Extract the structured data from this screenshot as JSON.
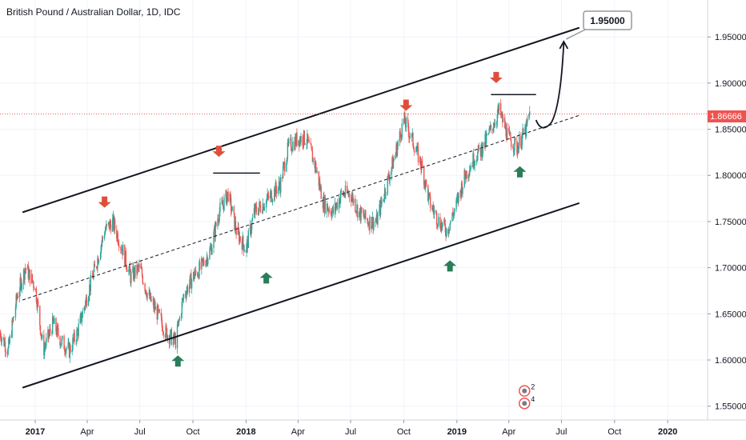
{
  "chart_data": {
    "type": "candlestick",
    "title": "British Pound / Australian Dollar, 1D, IDC",
    "xlabel": "",
    "ylabel": "",
    "x_ticks": [
      "2017",
      "Apr",
      "Jul",
      "Oct",
      "2018",
      "Apr",
      "Jul",
      "Oct",
      "2019",
      "Apr",
      "Jul",
      "Oct",
      "2020"
    ],
    "y_ticks": [
      "1.95000",
      "1.90000",
      "1.85000",
      "1.80000",
      "1.75000",
      "1.70000",
      "1.65000",
      "1.60000",
      "1.55000"
    ],
    "ylim": [
      1.535,
      1.99
    ],
    "xlim": [
      "2016-11-01",
      "2020-03-10"
    ],
    "current_price": "1.86666",
    "target_label": "1.95000",
    "target_value": 1.95,
    "series": [
      {
        "values": [
          [
            "2016-11-01",
            1.63
          ],
          [
            "2016-11-15",
            1.61
          ],
          [
            "2016-12-01",
            1.67
          ],
          [
            "2016-12-15",
            1.7
          ],
          [
            "2017-01-01",
            1.68
          ],
          [
            "2017-01-15",
            1.61
          ],
          [
            "2017-02-01",
            1.64
          ],
          [
            "2017-02-15",
            1.62
          ],
          [
            "2017-03-01",
            1.61
          ],
          [
            "2017-03-15",
            1.63
          ],
          [
            "2017-04-01",
            1.67
          ],
          [
            "2017-04-15",
            1.7
          ],
          [
            "2017-05-01",
            1.74
          ],
          [
            "2017-05-15",
            1.75
          ],
          [
            "2017-06-01",
            1.72
          ],
          [
            "2017-06-15",
            1.69
          ],
          [
            "2017-07-01",
            1.7
          ],
          [
            "2017-07-15",
            1.67
          ],
          [
            "2017-08-01",
            1.65
          ],
          [
            "2017-08-15",
            1.63
          ],
          [
            "2017-09-01",
            1.62
          ],
          [
            "2017-09-15",
            1.67
          ],
          [
            "2017-10-01",
            1.69
          ],
          [
            "2017-10-15",
            1.7
          ],
          [
            "2017-11-01",
            1.72
          ],
          [
            "2017-11-15",
            1.76
          ],
          [
            "2017-12-01",
            1.78
          ],
          [
            "2017-12-15",
            1.74
          ],
          [
            "2018-01-01",
            1.72
          ],
          [
            "2018-01-15",
            1.76
          ],
          [
            "2018-02-01",
            1.77
          ],
          [
            "2018-02-15",
            1.78
          ],
          [
            "2018-03-01",
            1.79
          ],
          [
            "2018-03-15",
            1.83
          ],
          [
            "2018-04-01",
            1.84
          ],
          [
            "2018-04-15",
            1.84
          ],
          [
            "2018-05-01",
            1.81
          ],
          [
            "2018-05-15",
            1.77
          ],
          [
            "2018-06-01",
            1.76
          ],
          [
            "2018-06-15",
            1.78
          ],
          [
            "2018-07-01",
            1.78
          ],
          [
            "2018-07-15",
            1.76
          ],
          [
            "2018-08-01",
            1.75
          ],
          [
            "2018-08-15",
            1.75
          ],
          [
            "2018-09-01",
            1.79
          ],
          [
            "2018-09-15",
            1.82
          ],
          [
            "2018-10-01",
            1.86
          ],
          [
            "2018-10-15",
            1.84
          ],
          [
            "2018-11-01",
            1.81
          ],
          [
            "2018-11-15",
            1.77
          ],
          [
            "2018-12-01",
            1.75
          ],
          [
            "2018-12-15",
            1.74
          ],
          [
            "2019-01-01",
            1.77
          ],
          [
            "2019-01-15",
            1.8
          ],
          [
            "2019-02-01",
            1.82
          ],
          [
            "2019-02-15",
            1.83
          ],
          [
            "2019-03-01",
            1.85
          ],
          [
            "2019-03-15",
            1.87
          ],
          [
            "2019-04-01",
            1.84
          ],
          [
            "2019-04-15",
            1.83
          ],
          [
            "2019-05-01",
            1.85
          ],
          [
            "2019-05-08",
            1.87
          ]
        ]
      }
    ],
    "annotations": {
      "channel_upper": [
        [
          "2016-12-10",
          1.76
        ],
        [
          "2019-08-01",
          1.96
        ]
      ],
      "channel_lower": [
        [
          "2016-12-10",
          1.57
        ],
        [
          "2019-08-01",
          1.77
        ]
      ],
      "channel_mid": [
        [
          "2016-12-10",
          1.665
        ],
        [
          "2019-08-01",
          1.865
        ]
      ],
      "resistance_2017": [
        [
          "2017-11-05",
          1.8025
        ],
        [
          "2018-01-25",
          1.8025
        ]
      ],
      "resistance_2019": [
        [
          "2019-03-01",
          1.8875
        ],
        [
          "2019-05-18",
          1.8875
        ]
      ],
      "down_arrows": [
        [
          "2017-05-01",
          1.765
        ],
        [
          "2017-11-15",
          1.82
        ],
        [
          "2018-10-05",
          1.87
        ],
        [
          "2019-03-10",
          1.9
        ]
      ],
      "up_arrows": [
        [
          "2017-09-05",
          1.605
        ],
        [
          "2018-02-05",
          1.695
        ],
        [
          "2018-12-20",
          1.708
        ],
        [
          "2019-04-20",
          1.81
        ]
      ],
      "path_start": [
        "2019-05-18",
        1.86
      ],
      "path_low": [
        "2019-06-05",
        1.857
      ],
      "path_end": [
        "2019-07-05",
        1.945
      ]
    },
    "events": [
      {
        "date": "2019-04-28",
        "price": 1.5665,
        "count": "2"
      },
      {
        "date": "2019-04-28",
        "price": 1.553,
        "count": "4"
      }
    ],
    "colors": {
      "up": "#26a69a",
      "down": "#ef5350",
      "price_line": "#ef5350",
      "arrow_down": "#e04e3b",
      "arrow_up": "#2a7d5a",
      "axis_bg": "#ffffff",
      "grid": "#f0f3fa"
    }
  }
}
